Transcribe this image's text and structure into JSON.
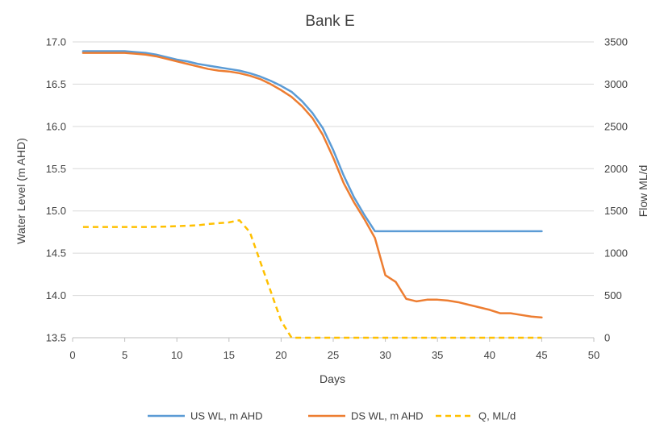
{
  "chart_data": {
    "type": "line",
    "title": "Bank E",
    "xlabel": "Days",
    "ylabel": "Water Level (m AHD)",
    "y2label": "Flow ML/d",
    "xlim": [
      0,
      50
    ],
    "ylim": [
      13.5,
      17.0
    ],
    "y2lim": [
      0,
      3500
    ],
    "x_ticks": [
      0,
      5,
      10,
      15,
      20,
      25,
      30,
      35,
      40,
      45,
      50
    ],
    "y_ticks": [
      "13.5",
      "14.0",
      "14.5",
      "15.0",
      "15.5",
      "16.0",
      "16.5",
      "17.0"
    ],
    "y2_ticks": [
      "0",
      "500",
      "1000",
      "1500",
      "2000",
      "2500",
      "3000",
      "3500"
    ],
    "grid": "horizontal",
    "legend_position": "bottom",
    "series": [
      {
        "name": "US WL, m AHD",
        "axis": "left",
        "color": "#5B9BD5",
        "style": "solid",
        "points": [
          [
            1,
            16.89
          ],
          [
            2,
            16.89
          ],
          [
            3,
            16.89
          ],
          [
            4,
            16.89
          ],
          [
            5,
            16.89
          ],
          [
            6,
            16.88
          ],
          [
            7,
            16.87
          ],
          [
            8,
            16.85
          ],
          [
            9,
            16.82
          ],
          [
            10,
            16.79
          ],
          [
            11,
            16.77
          ],
          [
            12,
            16.74
          ],
          [
            13,
            16.72
          ],
          [
            14,
            16.7
          ],
          [
            15,
            16.68
          ],
          [
            16,
            16.66
          ],
          [
            17,
            16.63
          ],
          [
            18,
            16.59
          ],
          [
            19,
            16.54
          ],
          [
            20,
            16.48
          ],
          [
            21,
            16.41
          ],
          [
            22,
            16.3
          ],
          [
            23,
            16.16
          ],
          [
            24,
            15.98
          ],
          [
            25,
            15.72
          ],
          [
            26,
            15.42
          ],
          [
            27,
            15.16
          ],
          [
            28,
            14.95
          ],
          [
            29,
            14.76
          ],
          [
            30,
            14.76
          ],
          [
            31,
            14.76
          ],
          [
            32,
            14.76
          ],
          [
            33,
            14.76
          ],
          [
            34,
            14.76
          ],
          [
            35,
            14.76
          ],
          [
            36,
            14.76
          ],
          [
            37,
            14.76
          ],
          [
            38,
            14.76
          ],
          [
            39,
            14.76
          ],
          [
            40,
            14.76
          ],
          [
            41,
            14.76
          ],
          [
            42,
            14.76
          ],
          [
            43,
            14.76
          ],
          [
            44,
            14.76
          ],
          [
            45,
            14.76
          ]
        ]
      },
      {
        "name": "DS WL, m AHD",
        "axis": "left",
        "color": "#ED7D31",
        "style": "solid",
        "points": [
          [
            1,
            16.87
          ],
          [
            2,
            16.87
          ],
          [
            3,
            16.87
          ],
          [
            4,
            16.87
          ],
          [
            5,
            16.87
          ],
          [
            6,
            16.86
          ],
          [
            7,
            16.85
          ],
          [
            8,
            16.83
          ],
          [
            9,
            16.8
          ],
          [
            10,
            16.77
          ],
          [
            11,
            16.74
          ],
          [
            12,
            16.71
          ],
          [
            13,
            16.68
          ],
          [
            14,
            16.66
          ],
          [
            15,
            16.65
          ],
          [
            16,
            16.63
          ],
          [
            17,
            16.6
          ],
          [
            18,
            16.56
          ],
          [
            19,
            16.5
          ],
          [
            20,
            16.43
          ],
          [
            21,
            16.35
          ],
          [
            22,
            16.24
          ],
          [
            23,
            16.1
          ],
          [
            24,
            15.9
          ],
          [
            25,
            15.63
          ],
          [
            26,
            15.33
          ],
          [
            27,
            15.1
          ],
          [
            28,
            14.9
          ],
          [
            29,
            14.68
          ],
          [
            30,
            14.24
          ],
          [
            31,
            14.16
          ],
          [
            32,
            13.96
          ],
          [
            33,
            13.93
          ],
          [
            34,
            13.95
          ],
          [
            35,
            13.95
          ],
          [
            36,
            13.94
          ],
          [
            37,
            13.92
          ],
          [
            38,
            13.89
          ],
          [
            39,
            13.86
          ],
          [
            40,
            13.83
          ],
          [
            41,
            13.79
          ],
          [
            42,
            13.79
          ],
          [
            43,
            13.77
          ],
          [
            44,
            13.75
          ],
          [
            45,
            13.74
          ]
        ]
      },
      {
        "name": "Q, ML/d",
        "axis": "right",
        "color": "#FFC000",
        "style": "dashed",
        "points": [
          [
            1,
            1310
          ],
          [
            2,
            1310
          ],
          [
            3,
            1310
          ],
          [
            4,
            1310
          ],
          [
            5,
            1310
          ],
          [
            6,
            1310
          ],
          [
            7,
            1310
          ],
          [
            8,
            1312
          ],
          [
            9,
            1315
          ],
          [
            10,
            1320
          ],
          [
            11,
            1325
          ],
          [
            12,
            1330
          ],
          [
            13,
            1345
          ],
          [
            14,
            1355
          ],
          [
            15,
            1365
          ],
          [
            16,
            1390
          ],
          [
            17,
            1250
          ],
          [
            18,
            900
          ],
          [
            19,
            550
          ],
          [
            20,
            200
          ],
          [
            21,
            0
          ],
          [
            22,
            0
          ],
          [
            23,
            0
          ],
          [
            24,
            0
          ],
          [
            25,
            0
          ],
          [
            26,
            0
          ],
          [
            27,
            0
          ],
          [
            28,
            0
          ],
          [
            29,
            0
          ],
          [
            30,
            0
          ],
          [
            31,
            0
          ],
          [
            32,
            0
          ],
          [
            33,
            0
          ],
          [
            34,
            0
          ],
          [
            35,
            0
          ],
          [
            36,
            0
          ],
          [
            37,
            0
          ],
          [
            38,
            0
          ],
          [
            39,
            0
          ],
          [
            40,
            0
          ],
          [
            41,
            0
          ],
          [
            42,
            0
          ],
          [
            43,
            0
          ],
          [
            44,
            0
          ],
          [
            45,
            0
          ]
        ]
      }
    ]
  }
}
